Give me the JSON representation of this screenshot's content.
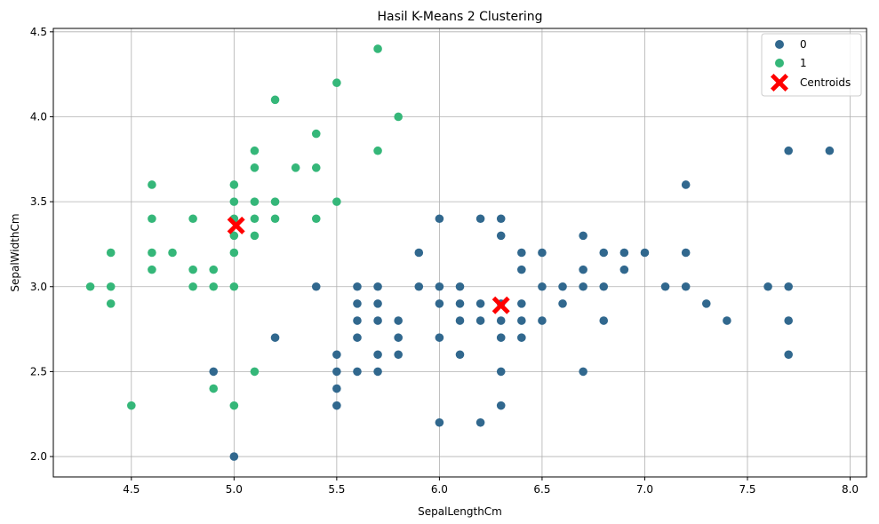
{
  "chart_data": {
    "type": "scatter",
    "title": "Hasil K-Means 2 Clustering",
    "xlabel": "SepalLengthCm",
    "ylabel": "SepalWidthCm",
    "xlim": [
      4.12,
      8.08
    ],
    "ylim": [
      1.88,
      4.52
    ],
    "xticks": [
      4.5,
      5.0,
      5.5,
      6.0,
      6.5,
      7.0,
      7.5,
      8.0
    ],
    "yticks": [
      2.0,
      2.5,
      3.0,
      3.5,
      4.0,
      4.5
    ],
    "grid": true,
    "legend_position": "top-right",
    "series": [
      {
        "name": "0",
        "color": "#31688e",
        "points": [
          [
            5.0,
            2.0
          ],
          [
            4.9,
            2.5
          ],
          [
            5.2,
            2.7
          ],
          [
            5.4,
            3.0
          ],
          [
            5.5,
            2.3
          ],
          [
            5.5,
            2.4
          ],
          [
            5.5,
            2.5
          ],
          [
            5.5,
            2.6
          ],
          [
            5.6,
            2.5
          ],
          [
            5.6,
            2.7
          ],
          [
            5.6,
            2.8
          ],
          [
            5.6,
            2.9
          ],
          [
            5.6,
            3.0
          ],
          [
            5.7,
            2.5
          ],
          [
            5.7,
            2.6
          ],
          [
            5.7,
            2.8
          ],
          [
            5.7,
            2.9
          ],
          [
            5.7,
            3.0
          ],
          [
            5.8,
            2.6
          ],
          [
            5.8,
            2.7
          ],
          [
            5.8,
            2.8
          ],
          [
            5.9,
            3.0
          ],
          [
            5.9,
            3.2
          ],
          [
            6.0,
            2.2
          ],
          [
            6.0,
            2.7
          ],
          [
            6.0,
            2.9
          ],
          [
            6.0,
            3.0
          ],
          [
            6.0,
            3.4
          ],
          [
            6.1,
            2.6
          ],
          [
            6.1,
            2.8
          ],
          [
            6.1,
            2.9
          ],
          [
            6.1,
            3.0
          ],
          [
            6.2,
            2.2
          ],
          [
            6.2,
            2.8
          ],
          [
            6.2,
            2.9
          ],
          [
            6.2,
            3.4
          ],
          [
            6.3,
            2.3
          ],
          [
            6.3,
            2.5
          ],
          [
            6.3,
            2.7
          ],
          [
            6.3,
            2.8
          ],
          [
            6.3,
            2.9
          ],
          [
            6.3,
            3.3
          ],
          [
            6.3,
            3.4
          ],
          [
            6.4,
            2.7
          ],
          [
            6.4,
            2.8
          ],
          [
            6.4,
            2.9
          ],
          [
            6.4,
            3.1
          ],
          [
            6.4,
            3.2
          ],
          [
            6.5,
            2.8
          ],
          [
            6.5,
            3.0
          ],
          [
            6.5,
            3.2
          ],
          [
            6.6,
            2.9
          ],
          [
            6.6,
            3.0
          ],
          [
            6.7,
            2.5
          ],
          [
            6.7,
            3.0
          ],
          [
            6.7,
            3.1
          ],
          [
            6.7,
            3.3
          ],
          [
            6.8,
            2.8
          ],
          [
            6.8,
            3.0
          ],
          [
            6.8,
            3.2
          ],
          [
            6.9,
            3.1
          ],
          [
            6.9,
            3.2
          ],
          [
            7.0,
            3.2
          ],
          [
            7.1,
            3.0
          ],
          [
            7.2,
            3.0
          ],
          [
            7.2,
            3.2
          ],
          [
            7.2,
            3.6
          ],
          [
            7.3,
            2.9
          ],
          [
            7.4,
            2.8
          ],
          [
            7.6,
            3.0
          ],
          [
            7.7,
            2.6
          ],
          [
            7.7,
            2.8
          ],
          [
            7.7,
            3.0
          ],
          [
            7.7,
            3.8
          ],
          [
            7.9,
            3.8
          ]
        ]
      },
      {
        "name": "1",
        "color": "#35b779",
        "points": [
          [
            4.3,
            3.0
          ],
          [
            4.4,
            2.9
          ],
          [
            4.4,
            3.0
          ],
          [
            4.4,
            3.2
          ],
          [
            4.5,
            2.3
          ],
          [
            4.6,
            3.1
          ],
          [
            4.6,
            3.2
          ],
          [
            4.6,
            3.4
          ],
          [
            4.6,
            3.6
          ],
          [
            4.7,
            3.2
          ],
          [
            4.8,
            3.0
          ],
          [
            4.8,
            3.1
          ],
          [
            4.8,
            3.4
          ],
          [
            4.9,
            2.4
          ],
          [
            4.9,
            3.0
          ],
          [
            4.9,
            3.1
          ],
          [
            5.0,
            2.3
          ],
          [
            5.0,
            3.0
          ],
          [
            5.0,
            3.2
          ],
          [
            5.0,
            3.3
          ],
          [
            5.0,
            3.4
          ],
          [
            5.0,
            3.5
          ],
          [
            5.0,
            3.6
          ],
          [
            5.1,
            2.5
          ],
          [
            5.1,
            3.3
          ],
          [
            5.1,
            3.4
          ],
          [
            5.1,
            3.5
          ],
          [
            5.1,
            3.7
          ],
          [
            5.1,
            3.8
          ],
          [
            5.2,
            3.4
          ],
          [
            5.2,
            3.5
          ],
          [
            5.2,
            4.1
          ],
          [
            5.3,
            3.7
          ],
          [
            5.4,
            3.4
          ],
          [
            5.4,
            3.7
          ],
          [
            5.4,
            3.9
          ],
          [
            5.5,
            3.5
          ],
          [
            5.5,
            4.2
          ],
          [
            5.7,
            3.8
          ],
          [
            5.7,
            4.4
          ],
          [
            5.8,
            4.0
          ]
        ]
      }
    ],
    "centroids": {
      "name": "Centroids",
      "color": "#ff0000",
      "points": [
        [
          5.01,
          3.36
        ],
        [
          6.3,
          2.89
        ]
      ]
    }
  }
}
